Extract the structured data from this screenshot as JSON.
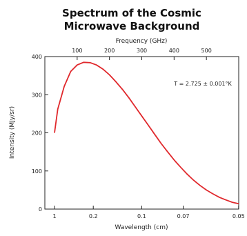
{
  "chart_data": {
    "type": "line",
    "title": [
      "Spectrum of the Cosmic",
      "Microwave Background"
    ],
    "top_axis_label": "Frequency (GHz)",
    "top_ticks": [
      100,
      200,
      300,
      400,
      500
    ],
    "xlabel": "Wavelength (cm)",
    "bottom_ticks": [
      "1",
      "0.2",
      "0.1",
      "0.07",
      "0.05"
    ],
    "ylabel": "Intensity (MJy/sr)",
    "y_ticks": [
      0,
      100,
      200,
      300,
      400
    ],
    "ylim": [
      0,
      400
    ],
    "xlim_frequency_ghz": [
      0,
      600
    ],
    "annotation": "T = 2.725 ± 0.001°K",
    "series": [
      {
        "color": "#e0282c",
        "frequency_ghz": [
          30,
          40,
          60,
          80,
          100,
          120,
          140,
          160,
          180,
          200,
          220,
          240,
          260,
          280,
          300,
          320,
          340,
          360,
          380,
          400,
          420,
          440,
          460,
          480,
          500,
          520,
          540,
          560,
          580,
          600
        ],
        "values": [
          200,
          262,
          322,
          361,
          378,
          385,
          384,
          378,
          367,
          352,
          334,
          314,
          292,
          268,
          244,
          220,
          196,
          172,
          150,
          129,
          110,
          92,
          76,
          62,
          50,
          40,
          31,
          24,
          18,
          14
        ]
      }
    ]
  }
}
